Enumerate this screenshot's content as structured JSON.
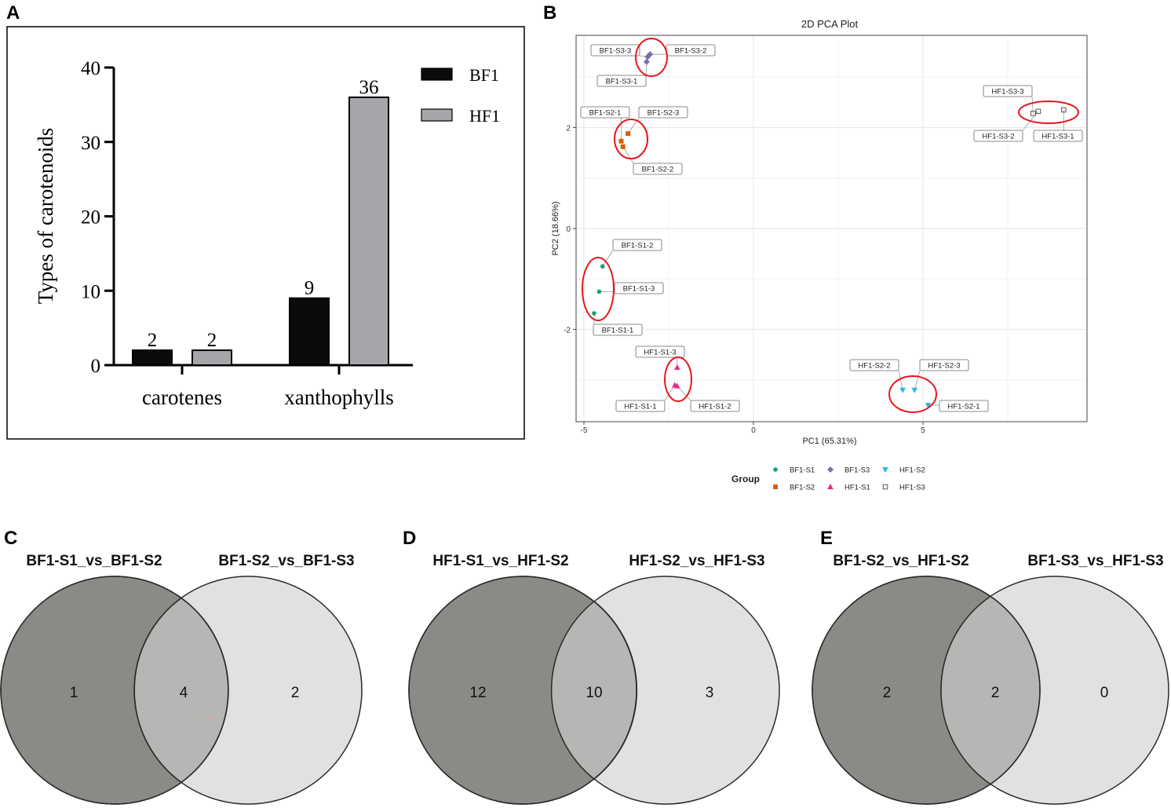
{
  "panels": {
    "a": "A",
    "b": "B",
    "c": "C",
    "d": "D",
    "e": "E"
  },
  "colors": {
    "bf1": "#0b0b0b",
    "hf1": "#a5a6a9",
    "ellipse": "#e8171f",
    "venn_left": "#8a8a87",
    "venn_right": "#e0e2e2",
    "venn_overlap": "#b6b6b4",
    "bf1_s1": "#1b9e77",
    "bf1_s2": "#d95f02",
    "bf1_s3": "#7570b3",
    "hf1_s1": "#e7298a",
    "hf1_s2": "#29b6e8",
    "hf1_s3": "#555555"
  },
  "chart_data": [
    {
      "type": "bar",
      "title": "",
      "xlabel": "",
      "ylabel": "Types of carotenoids",
      "ylim": [
        0,
        40
      ],
      "yticks": [
        "0",
        "10",
        "20",
        "30",
        "40"
      ],
      "categories": [
        "carotenes",
        "xanthophylls"
      ],
      "series": [
        {
          "name": "BF1",
          "values": [
            2,
            9
          ],
          "labels": [
            "2",
            "9"
          ]
        },
        {
          "name": "HF1",
          "values": [
            2,
            36
          ],
          "labels": [
            "2",
            "36"
          ]
        }
      ],
      "legend": [
        "BF1",
        "HF1"
      ]
    },
    {
      "type": "scatter",
      "title": "2D PCA Plot",
      "xlabel": "PC1 (65.31%)",
      "ylabel": "PC2 (18.66%)",
      "xlim": [
        -5.5,
        10
      ],
      "ylim": [
        -3.8,
        3.8
      ],
      "xticks": [
        "-5",
        "0",
        "5"
      ],
      "yticks": [
        "2",
        "0",
        "-2"
      ],
      "legend_title": "Group",
      "groups": [
        {
          "name": "BF1-S1",
          "shape": "circle",
          "color": "#1b9e77",
          "points": [
            {
              "x": -4.45,
              "y": -0.75,
              "label": "BF1-S1-2"
            },
            {
              "x": -4.55,
              "y": -1.25,
              "label": "BF1-S1-3"
            },
            {
              "x": -4.7,
              "y": -1.68,
              "label": "BF1-S1-1"
            }
          ]
        },
        {
          "name": "BF1-S2",
          "shape": "square",
          "color": "#d95f02",
          "points": [
            {
              "x": -3.7,
              "y": 1.88,
              "label": "BF1-S2-3"
            },
            {
              "x": -3.9,
              "y": 1.73,
              "label": "BF1-S2-1"
            },
            {
              "x": -3.85,
              "y": 1.62,
              "label": "BF1-S2-2"
            }
          ]
        },
        {
          "name": "BF1-S3",
          "shape": "diamond",
          "color": "#7570b3",
          "points": [
            {
              "x": -3.05,
              "y": 3.45,
              "label": "BF1-S3-2"
            },
            {
              "x": -3.12,
              "y": 3.4,
              "label": "BF1-S3-3"
            },
            {
              "x": -3.15,
              "y": 3.3,
              "label": "BF1-S3-1"
            }
          ]
        },
        {
          "name": "HF1-S1",
          "shape": "triangle",
          "color": "#e7298a",
          "points": [
            {
              "x": -2.25,
              "y": -2.75,
              "label": "HF1-S1-3"
            },
            {
              "x": -2.32,
              "y": -3.1,
              "label": "HF1-S1-1"
            },
            {
              "x": -2.25,
              "y": -3.12,
              "label": "HF1-S1-2"
            }
          ]
        },
        {
          "name": "HF1-S2",
          "shape": "triangle-down",
          "color": "#29b6e8",
          "points": [
            {
              "x": 4.4,
              "y": -3.2,
              "label": "HF1-S2-2"
            },
            {
              "x": 4.75,
              "y": -3.2,
              "label": "HF1-S2-3"
            },
            {
              "x": 5.15,
              "y": -3.5,
              "label": "HF1-S2-1"
            }
          ]
        },
        {
          "name": "HF1-S3",
          "shape": "open-square",
          "color": "#555555",
          "points": [
            {
              "x": 8.25,
              "y": 2.28,
              "label": "HF1-S3-3"
            },
            {
              "x": 8.4,
              "y": 2.32,
              "label": "HF1-S3-2"
            },
            {
              "x": 9.15,
              "y": 2.35,
              "label": "HF1-S3-1"
            }
          ]
        }
      ]
    },
    {
      "type": "venn",
      "sets": [
        "BF1-S1_vs_BF1-S2",
        "BF1-S2_vs_BF1-S3"
      ],
      "values": {
        "left_only": "1",
        "both": "4",
        "right_only": "2"
      }
    },
    {
      "type": "venn",
      "sets": [
        "HF1-S1_vs_HF1-S2",
        "HF1-S2_vs_HF1-S3"
      ],
      "values": {
        "left_only": "12",
        "both": "10",
        "right_only": "3"
      }
    },
    {
      "type": "venn",
      "sets": [
        "BF1-S2_vs_HF1-S2",
        "BF1-S3_vs_HF1-S3"
      ],
      "values": {
        "left_only": "2",
        "both": "2",
        "right_only": "0"
      }
    }
  ]
}
